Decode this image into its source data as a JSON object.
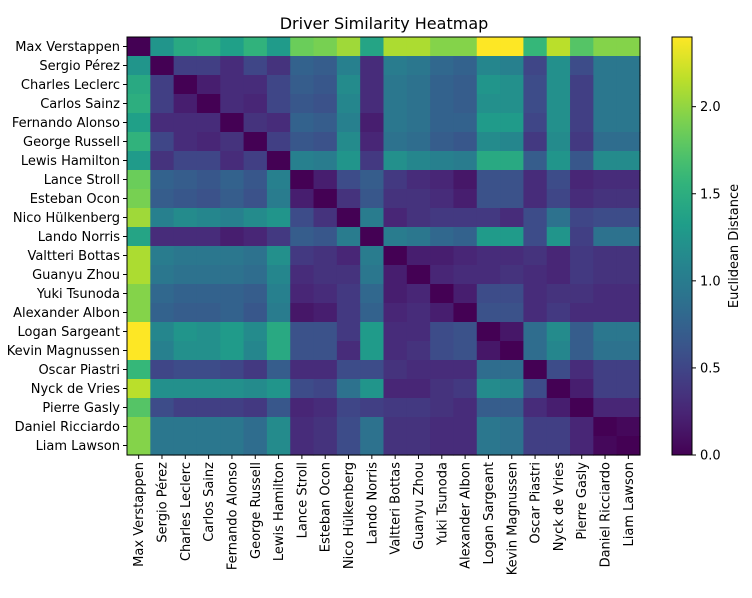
{
  "chart_data": {
    "type": "heatmap",
    "title": "Driver Similarity Heatmap",
    "colorbar_label": "Euclidean Distance",
    "colormap": "viridis",
    "vmin": 0.0,
    "vmax": 2.4,
    "colorbar_ticks": [
      "0.0",
      "0.5",
      "1.0",
      "1.5",
      "2.0"
    ],
    "colorbar_tick_values": [
      0.0,
      0.5,
      1.0,
      1.5,
      2.0
    ],
    "row_labels": [
      "Max Verstappen",
      "Sergio Pérez",
      "Charles Leclerc",
      "Carlos Sainz",
      "Fernando Alonso",
      "George Russell",
      "Lewis Hamilton",
      "Lance Stroll",
      "Esteban Ocon",
      "Nico Hülkenberg",
      "Lando Norris",
      "Valtteri Bottas",
      "Guanyu Zhou",
      "Yuki Tsunoda",
      "Alexander Albon",
      "Logan Sargeant",
      "Kevin Magnussen",
      "Oscar Piastri",
      "Nyck de Vries",
      "Pierre Gasly",
      "Daniel Ricciardo",
      "Liam Lawson"
    ],
    "col_labels": [
      "Max Verstappen",
      "Sergio Pérez",
      "Charles Leclerc",
      "Carlos Sainz",
      "Fernando Alonso",
      "George Russell",
      "Lewis Hamilton",
      "Lance Stroll",
      "Esteban Ocon",
      "Nico Hülkenberg",
      "Lando Norris",
      "Valtteri Bottas",
      "Guanyu Zhou",
      "Yuki Tsunoda",
      "Alexander Albon",
      "Logan Sargeant",
      "Kevin Magnussen",
      "Oscar Piastri",
      "Nyck de Vries",
      "Pierre Gasly",
      "Daniel Ricciardo",
      "Liam Lawson"
    ],
    "values": [
      [
        0.0,
        1.25,
        1.45,
        1.5,
        1.35,
        1.55,
        1.3,
        1.85,
        1.9,
        2.05,
        1.4,
        2.1,
        2.1,
        1.95,
        1.95,
        2.4,
        2.4,
        1.6,
        2.15,
        1.75,
        1.95,
        1.95
      ],
      [
        1.25,
        0.0,
        0.45,
        0.45,
        0.3,
        0.5,
        0.35,
        0.75,
        0.7,
        1.05,
        0.3,
        1.0,
        0.95,
        0.8,
        0.75,
        1.1,
        1.05,
        0.5,
        1.2,
        0.55,
        0.95,
        0.95
      ],
      [
        1.45,
        0.45,
        0.0,
        0.2,
        0.3,
        0.3,
        0.5,
        0.7,
        0.65,
        1.15,
        0.3,
        0.95,
        0.9,
        0.75,
        0.7,
        1.25,
        1.2,
        0.55,
        1.2,
        0.45,
        0.95,
        0.95
      ],
      [
        1.5,
        0.45,
        0.2,
        0.0,
        0.3,
        0.25,
        0.5,
        0.65,
        0.6,
        1.1,
        0.3,
        0.95,
        0.9,
        0.75,
        0.7,
        1.2,
        1.2,
        0.55,
        1.2,
        0.45,
        0.95,
        0.95
      ],
      [
        1.35,
        0.3,
        0.3,
        0.3,
        0.0,
        0.35,
        0.3,
        0.75,
        0.7,
        1.05,
        0.2,
        0.95,
        0.9,
        0.75,
        0.75,
        1.3,
        1.3,
        0.5,
        1.2,
        0.45,
        0.95,
        0.95
      ],
      [
        1.55,
        0.5,
        0.3,
        0.25,
        0.35,
        0.0,
        0.45,
        0.65,
        0.6,
        1.15,
        0.25,
        0.9,
        0.85,
        0.7,
        0.65,
        1.15,
        1.1,
        0.4,
        1.15,
        0.4,
        0.85,
        0.85
      ],
      [
        1.3,
        0.35,
        0.5,
        0.5,
        0.3,
        0.45,
        0.0,
        1.05,
        1.0,
        1.25,
        0.4,
        1.2,
        1.1,
        1.05,
        1.0,
        1.45,
        1.45,
        0.7,
        1.25,
        0.65,
        1.15,
        1.15
      ],
      [
        1.85,
        0.75,
        0.7,
        0.65,
        0.75,
        0.65,
        1.05,
        0.0,
        0.2,
        0.55,
        0.7,
        0.4,
        0.3,
        0.25,
        0.15,
        0.6,
        0.6,
        0.3,
        0.55,
        0.25,
        0.3,
        0.3
      ],
      [
        1.9,
        0.7,
        0.65,
        0.6,
        0.7,
        0.6,
        1.0,
        0.2,
        0.0,
        0.35,
        0.65,
        0.35,
        0.35,
        0.3,
        0.2,
        0.6,
        0.6,
        0.3,
        0.5,
        0.3,
        0.35,
        0.35
      ],
      [
        2.05,
        1.05,
        1.15,
        1.1,
        1.05,
        1.15,
        1.25,
        0.55,
        0.35,
        0.0,
        1.0,
        0.25,
        0.35,
        0.4,
        0.4,
        0.4,
        0.3,
        0.55,
        0.9,
        0.5,
        0.55,
        0.55
      ],
      [
        1.4,
        0.3,
        0.3,
        0.3,
        0.2,
        0.25,
        0.4,
        0.7,
        0.65,
        1.0,
        0.0,
        1.0,
        0.95,
        0.8,
        0.75,
        1.3,
        1.3,
        0.55,
        1.25,
        0.45,
        0.9,
        0.9
      ],
      [
        2.1,
        1.0,
        0.95,
        0.95,
        0.95,
        0.9,
        1.2,
        0.4,
        0.35,
        0.25,
        1.0,
        0.0,
        0.2,
        0.2,
        0.25,
        0.3,
        0.3,
        0.35,
        0.25,
        0.4,
        0.35,
        0.35
      ],
      [
        2.1,
        0.95,
        0.9,
        0.9,
        0.9,
        0.85,
        1.1,
        0.3,
        0.35,
        0.35,
        0.95,
        0.2,
        0.0,
        0.25,
        0.3,
        0.3,
        0.35,
        0.3,
        0.25,
        0.4,
        0.35,
        0.35
      ],
      [
        1.95,
        0.8,
        0.75,
        0.75,
        0.75,
        0.7,
        1.05,
        0.25,
        0.3,
        0.4,
        0.8,
        0.2,
        0.25,
        0.0,
        0.2,
        0.55,
        0.55,
        0.3,
        0.35,
        0.35,
        0.3,
        0.3
      ],
      [
        1.95,
        0.75,
        0.7,
        0.7,
        0.75,
        0.65,
        1.0,
        0.15,
        0.2,
        0.4,
        0.75,
        0.25,
        0.3,
        0.2,
        0.0,
        0.6,
        0.6,
        0.3,
        0.4,
        0.3,
        0.3,
        0.3
      ],
      [
        2.4,
        1.1,
        1.25,
        1.2,
        1.3,
        1.15,
        1.45,
        0.6,
        0.6,
        0.4,
        1.3,
        0.3,
        0.3,
        0.55,
        0.6,
        0.0,
        0.15,
        0.85,
        1.15,
        0.7,
        0.95,
        0.95
      ],
      [
        2.4,
        1.05,
        1.2,
        1.2,
        1.3,
        1.1,
        1.45,
        0.6,
        0.6,
        0.3,
        1.3,
        0.3,
        0.35,
        0.55,
        0.6,
        0.15,
        0.0,
        0.85,
        1.1,
        0.7,
        0.9,
        0.9
      ],
      [
        1.6,
        0.5,
        0.55,
        0.55,
        0.5,
        0.4,
        0.7,
        0.3,
        0.3,
        0.55,
        0.55,
        0.35,
        0.3,
        0.3,
        0.3,
        0.85,
        0.85,
        0.0,
        0.55,
        0.3,
        0.45,
        0.45
      ],
      [
        2.15,
        1.2,
        1.2,
        1.2,
        1.2,
        1.15,
        1.25,
        0.55,
        0.5,
        0.9,
        1.25,
        0.25,
        0.25,
        0.35,
        0.4,
        1.15,
        1.1,
        0.55,
        0.0,
        0.2,
        0.45,
        0.45
      ],
      [
        1.75,
        0.55,
        0.45,
        0.45,
        0.45,
        0.4,
        0.65,
        0.25,
        0.3,
        0.5,
        0.45,
        0.4,
        0.4,
        0.35,
        0.3,
        0.7,
        0.7,
        0.3,
        0.2,
        0.0,
        0.25,
        0.25
      ],
      [
        1.95,
        0.95,
        0.95,
        0.95,
        0.95,
        0.85,
        1.15,
        0.3,
        0.35,
        0.55,
        0.9,
        0.35,
        0.35,
        0.3,
        0.3,
        0.95,
        0.9,
        0.45,
        0.45,
        0.25,
        0.0,
        0.05
      ],
      [
        1.95,
        0.95,
        0.95,
        0.95,
        0.95,
        0.85,
        1.15,
        0.3,
        0.35,
        0.55,
        0.9,
        0.35,
        0.35,
        0.3,
        0.3,
        0.95,
        0.9,
        0.45,
        0.45,
        0.25,
        0.05,
        0.0
      ]
    ]
  }
}
